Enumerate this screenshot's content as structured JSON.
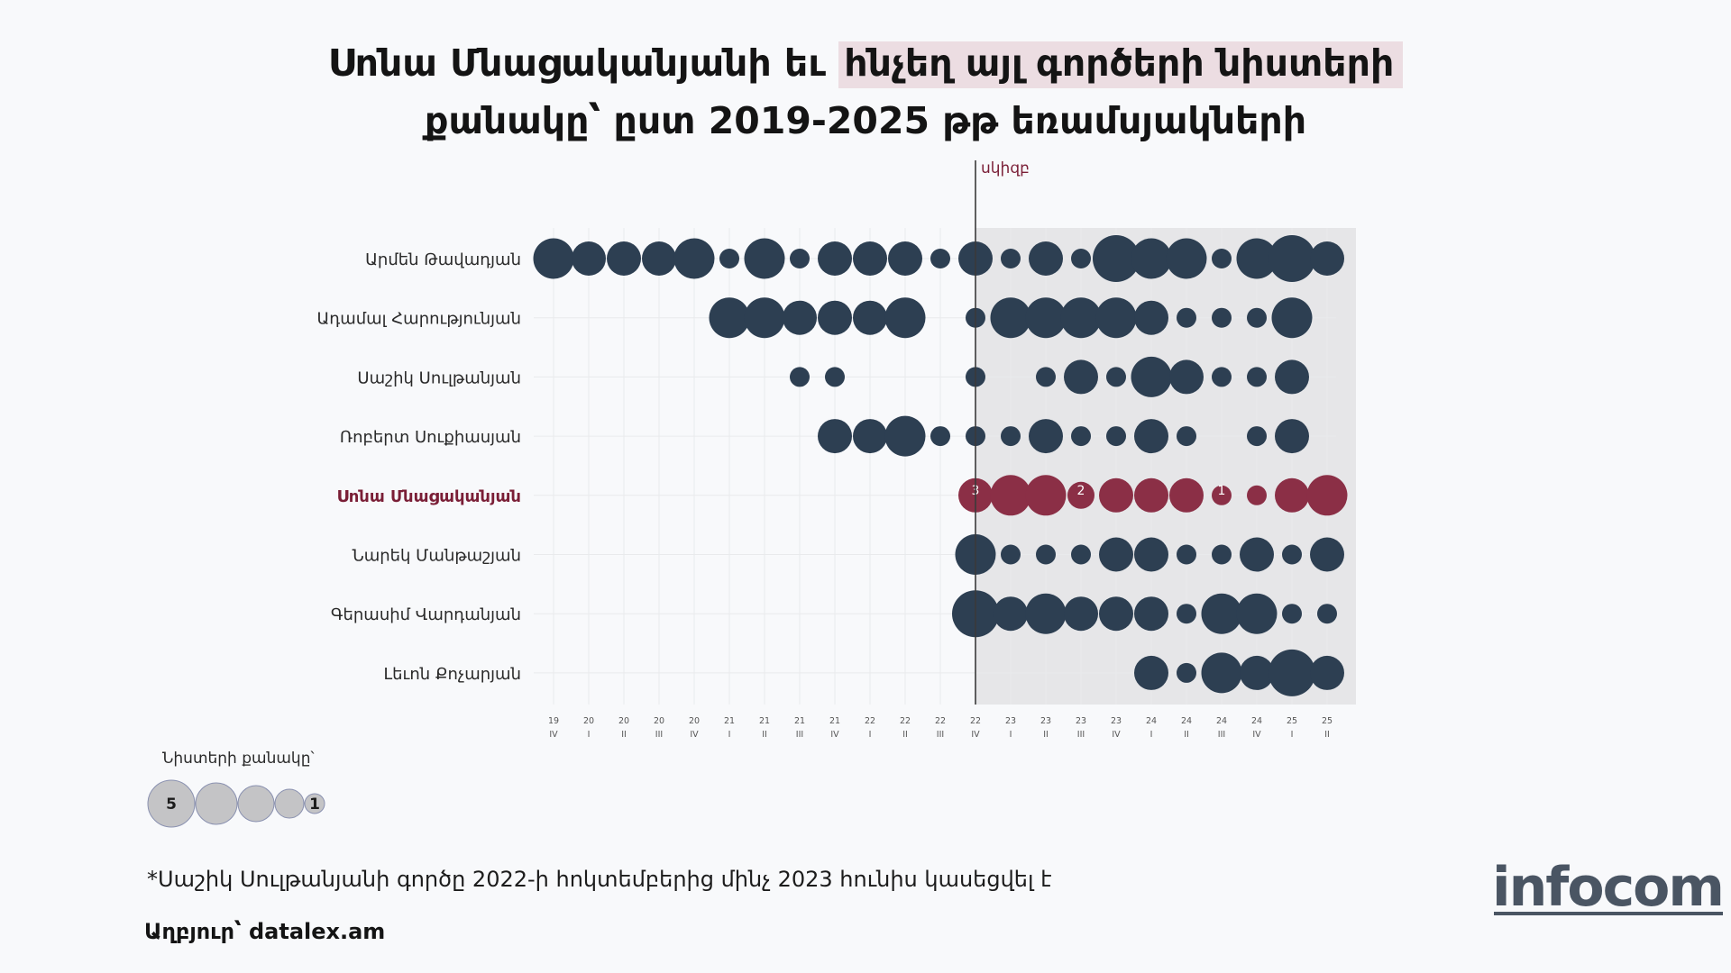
{
  "title": {
    "line1_a": "Սոնա Մնացականյանի եւ ",
    "line1_highlight": "հնչեղ այլ գործերի նիստերի",
    "line2": "քանակը՝  ըստ 2019-2025 թթ եռամսյակների"
  },
  "colors": {
    "default_bubble": "#2d3f52",
    "highlight_bubble": "#8b2f46",
    "highlight_label": "#7a1e36",
    "shade": "#e6e6e8",
    "grid": "#e9eaec",
    "legend_fill": "#c4c4c6",
    "legend_stroke": "#8a91b0"
  },
  "chart_data": {
    "type": "scatter",
    "marker_label": "սկիզբ",
    "marker_quarter_index": 12,
    "quarters": [
      {
        "year": "19",
        "q": "IV"
      },
      {
        "year": "20",
        "q": "I"
      },
      {
        "year": "20",
        "q": "II"
      },
      {
        "year": "20",
        "q": "III"
      },
      {
        "year": "20",
        "q": "IV"
      },
      {
        "year": "21",
        "q": "I"
      },
      {
        "year": "21",
        "q": "II"
      },
      {
        "year": "21",
        "q": "III"
      },
      {
        "year": "21",
        "q": "IV"
      },
      {
        "year": "22",
        "q": "I"
      },
      {
        "year": "22",
        "q": "II"
      },
      {
        "year": "22",
        "q": "III"
      },
      {
        "year": "22",
        "q": "IV"
      },
      {
        "year": "23",
        "q": "I"
      },
      {
        "year": "23",
        "q": "II"
      },
      {
        "year": "23",
        "q": "III"
      },
      {
        "year": "23",
        "q": "IV"
      },
      {
        "year": "24",
        "q": "I"
      },
      {
        "year": "24",
        "q": "II"
      },
      {
        "year": "24",
        "q": "III"
      },
      {
        "year": "24",
        "q": "IV"
      },
      {
        "year": "25",
        "q": "I"
      },
      {
        "year": "25",
        "q": "II"
      }
    ],
    "series": [
      {
        "name": "Արմեն Թավադյան",
        "highlight": false,
        "values": [
          4,
          3,
          3,
          3,
          4,
          1,
          4,
          1,
          3,
          3,
          3,
          1,
          3,
          1,
          3,
          1,
          5,
          4,
          4,
          1,
          4,
          5,
          3
        ]
      },
      {
        "name": "Ադամալ Հարությունյան",
        "highlight": false,
        "values": [
          0,
          0,
          0,
          0,
          0,
          4,
          4,
          3,
          3,
          3,
          4,
          0,
          1,
          4,
          4,
          4,
          4,
          3,
          1,
          1,
          1,
          4,
          0
        ]
      },
      {
        "name": "Սաշիկ Սուլթանյան ",
        "highlight": false,
        "values": [
          0,
          0,
          0,
          0,
          0,
          0,
          0,
          1,
          1,
          0,
          0,
          0,
          1,
          0,
          1,
          3,
          1,
          4,
          3,
          1,
          1,
          3,
          0
        ]
      },
      {
        "name": "Ռոբերտ Սուքիասյան",
        "highlight": false,
        "values": [
          0,
          0,
          0,
          0,
          0,
          0,
          0,
          0,
          3,
          3,
          4,
          1,
          1,
          1,
          3,
          1,
          1,
          3,
          1,
          0,
          1,
          3,
          0
        ]
      },
      {
        "name": "Սոնա Մնացականյան",
        "highlight": true,
        "values": [
          0,
          0,
          0,
          0,
          0,
          0,
          0,
          0,
          0,
          0,
          0,
          0,
          3,
          4,
          4,
          2,
          3,
          3,
          3,
          1,
          1,
          3,
          4
        ]
      },
      {
        "name": "Նարեկ Մանթաշյան",
        "highlight": false,
        "values": [
          0,
          0,
          0,
          0,
          0,
          0,
          0,
          0,
          0,
          0,
          0,
          0,
          4,
          1,
          1,
          1,
          3,
          3,
          1,
          1,
          3,
          1,
          3
        ]
      },
      {
        "name": "Գերասիմ Վարդանյան",
        "highlight": false,
        "values": [
          0,
          0,
          0,
          0,
          0,
          0,
          0,
          0,
          0,
          0,
          0,
          0,
          5,
          3,
          4,
          3,
          3,
          3,
          1,
          4,
          4,
          1,
          1
        ]
      },
      {
        "name": "Լեւոն Քոչարյան",
        "highlight": false,
        "values": [
          0,
          0,
          0,
          0,
          0,
          0,
          0,
          0,
          0,
          0,
          0,
          0,
          0,
          0,
          0,
          0,
          0,
          3,
          1,
          4,
          3,
          5,
          3
        ]
      }
    ],
    "annotations": [
      {
        "series": "Սոնա Մնացականյան",
        "quarter_index": 12,
        "text": "3"
      },
      {
        "series": "Սոնա Մնացականյան",
        "quarter_index": 15,
        "text": "2"
      },
      {
        "series": "Սոնա Մնացականյան",
        "quarter_index": 19,
        "text": "1"
      }
    ],
    "legend": {
      "title": "Նիստերի քանակը՝",
      "sizes": [
        5,
        4,
        3,
        2,
        1
      ],
      "labels": [
        "5",
        "",
        "",
        "",
        "1"
      ]
    }
  },
  "footnote": "*Սաշիկ Սուլթանյանի գործը 2022-ի հոկտեմբերից մինչ 2023 հունիս կասեցվել է",
  "source": "Աղբյուր՝ datalex.am",
  "logo": "infocom"
}
